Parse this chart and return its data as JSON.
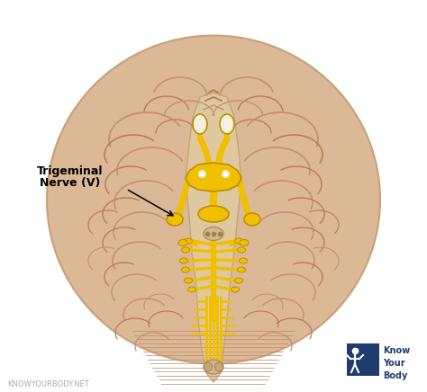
{
  "bg_color": "#ffffff",
  "brain_color": "#dbb896",
  "brain_shadow": "#c9a07a",
  "brain_light": "#e8c9a8",
  "fold_color": "#c49070",
  "fold_color2": "#b87a55",
  "nerve_color": "#f0c000",
  "nerve_outline": "#b89000",
  "nerve_light": "#f8e060",
  "bs_color": "#e0c090",
  "bs_outline": "#c0a070",
  "label_line1": "Trigeminal",
  "label_line2": "Nerve (V)",
  "label_fontsize": 9,
  "watermark": "KNOWYOURBODY.NET",
  "watermark_color": "#aaaaaa",
  "watermark_fontsize": 6,
  "logo_bg": "#1e3d6e",
  "logo_text": "Know\nYour\nBody",
  "logo_fontsize": 7,
  "figsize": [
    4.74,
    4.36
  ],
  "dpi": 100
}
